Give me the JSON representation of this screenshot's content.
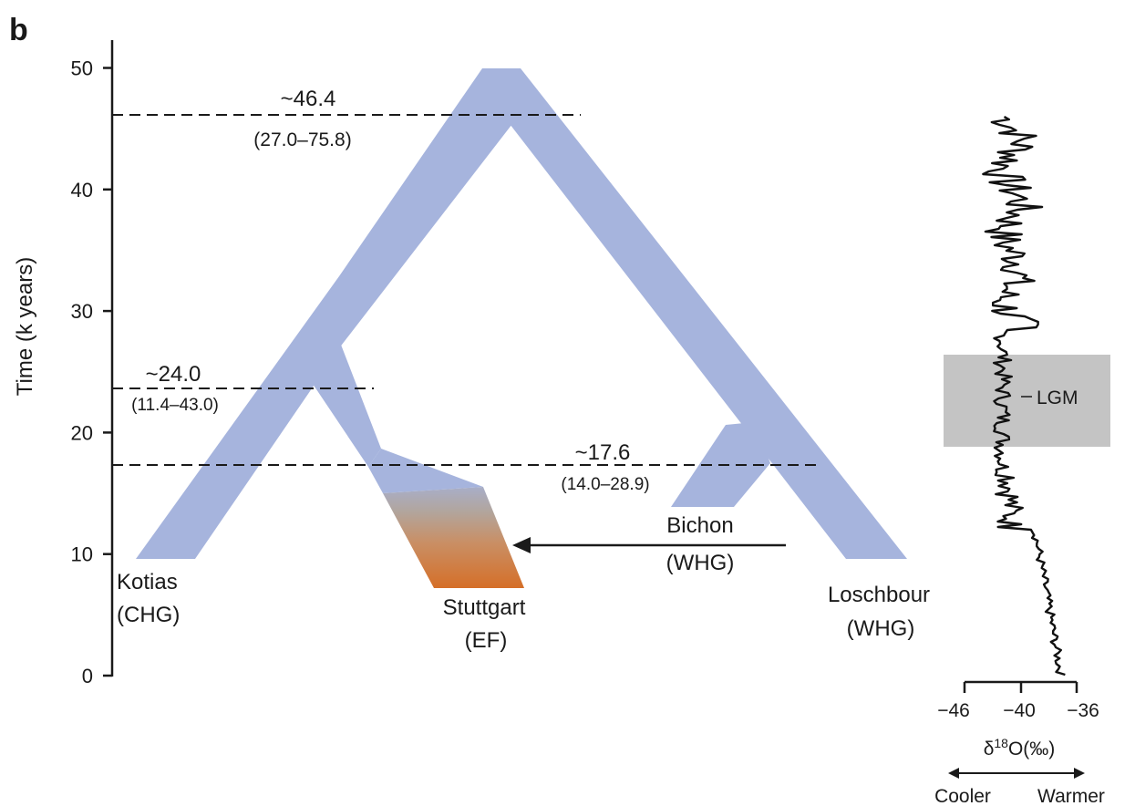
{
  "panel_label": "b",
  "y_axis": {
    "label": "Time (k years)",
    "ticks": [
      0,
      10,
      20,
      30,
      40,
      50
    ]
  },
  "split_times": [
    {
      "id": "split-46",
      "value": "~46.4",
      "interval": "(27.0–75.8)",
      "k_years": 46.4
    },
    {
      "id": "split-24",
      "value": "~24.0",
      "interval": "(11.4–43.0)",
      "k_years": 24.0
    },
    {
      "id": "split-17",
      "value": "~17.6",
      "interval": "(14.0–28.9)",
      "k_years": 17.6
    }
  ],
  "lineages": {
    "kotias": {
      "name": "Kotias",
      "group": "(CHG)"
    },
    "stuttgart": {
      "name": "Stuttgart",
      "group": "(EF)"
    },
    "bichon": {
      "name": "Bichon",
      "group": "(WHG)"
    },
    "loschbour": {
      "name": "Loschbour",
      "group": "(WHG)"
    }
  },
  "climate": {
    "lgm_label": "LGM",
    "x_ticks": [
      "−46",
      "−40",
      "−36"
    ],
    "x_label_prefix": "δ",
    "x_label_sup": "18",
    "x_label_suffix": "O(‰)",
    "cooler": "Cooler",
    "warmer": "Warmer"
  },
  "colors": {
    "lineage": "#a6b4dd",
    "ef_top": "#a9acc6",
    "ef_bottom": "#d2712c",
    "lgm_box": "#c4c4c4",
    "ink": "#1a1a1a"
  }
}
